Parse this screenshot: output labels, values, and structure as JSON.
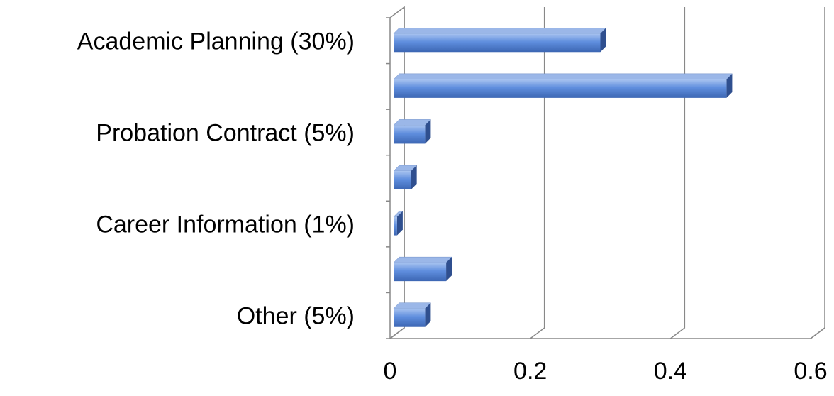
{
  "chart_data": {
    "type": "bar",
    "orientation": "horizontal",
    "categories": [
      "Academic Planning (30%)",
      null,
      "Probation Contract (5%)",
      null,
      "Career Information (1%)",
      null,
      "Other (5%)"
    ],
    "values": [
      0.3,
      0.48,
      0.05,
      0.03,
      0.01,
      0.08,
      0.05
    ],
    "color": "#4a78c9",
    "xlim": [
      0,
      0.6
    ],
    "xticks": [
      0,
      0.2,
      0.4,
      0.6
    ],
    "grid": true
  }
}
